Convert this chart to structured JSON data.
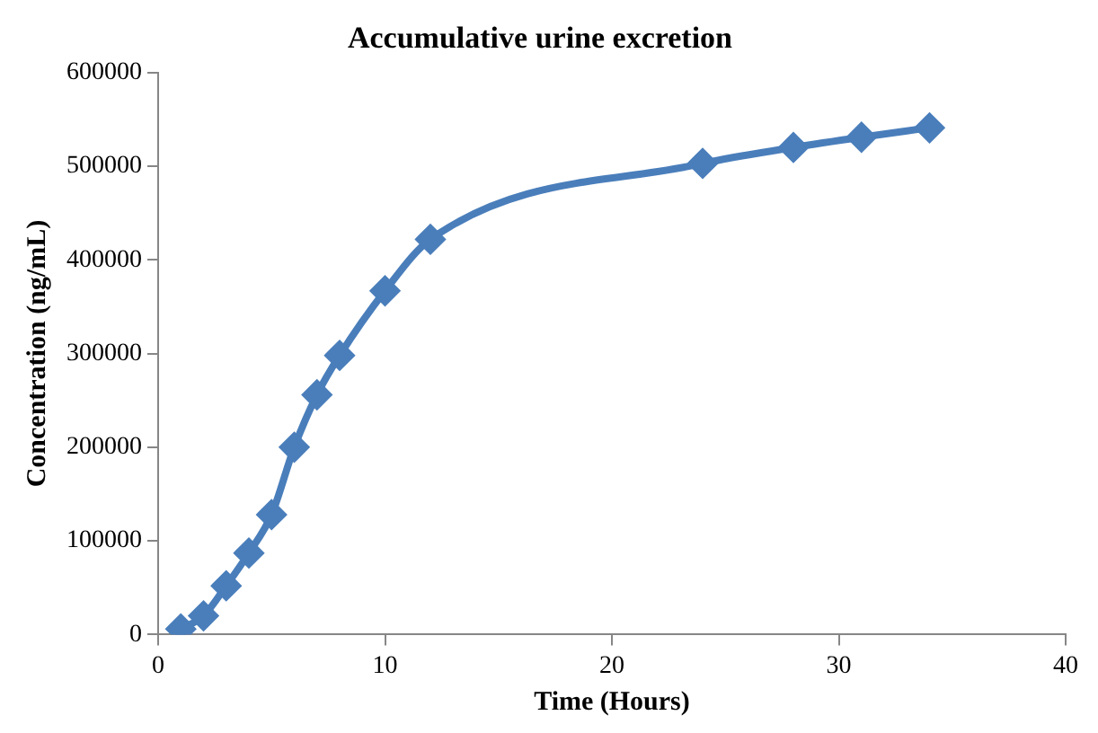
{
  "chart_data": {
    "type": "line",
    "title": "Accumulative urine excretion",
    "xlabel": "Time (Hours)",
    "ylabel": "Concentration (ng/mL)",
    "x": [
      1,
      2,
      3,
      4,
      5,
      6,
      7,
      8,
      10,
      12,
      24,
      28,
      31,
      34
    ],
    "series": [
      {
        "color": "#4a7ebb",
        "values": [
          6000,
          20000,
          52000,
          87000,
          128000,
          200000,
          256000,
          298000,
          367000,
          422000,
          503000,
          520000,
          531000,
          541000
        ]
      }
    ],
    "xlim": [
      0,
      40
    ],
    "xticks": [
      0,
      10,
      20,
      30,
      40
    ],
    "ylim": [
      0,
      600000
    ],
    "yticks": [
      0,
      100000,
      200000,
      300000,
      400000,
      500000,
      600000
    ],
    "grid": false,
    "legend": false,
    "marker": "diamond",
    "line_style": "solid"
  }
}
